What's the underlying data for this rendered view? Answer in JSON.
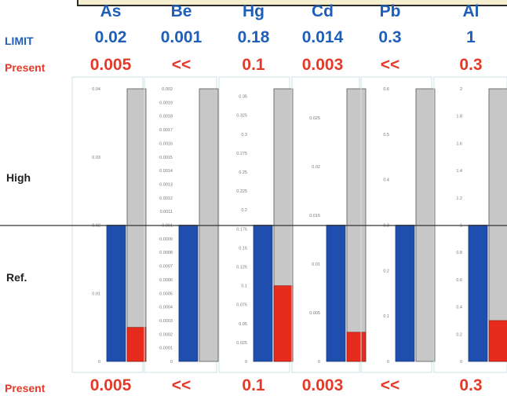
{
  "row_labels": {
    "limit": "LIMIT",
    "present": "Present",
    "high": "High",
    "ref": "Ref.",
    "present_bottom": "Present"
  },
  "colors": {
    "limit_text": "#1f5fb8",
    "present_text": "#e53a2a",
    "limit_fill": "#1f4fae",
    "present_fill": "#e62a1c",
    "high_fill": "#c7c7c7",
    "panel_border": "#cfe3e7"
  },
  "chart_data": {
    "type": "bar",
    "elements": [
      {
        "name": "As",
        "limit_label": "0.02",
        "present_label": "0.005",
        "limit": 0.02,
        "present": 0.005,
        "scale_max": 0.04,
        "ticks": [
          "0",
          "0.01",
          "0.02",
          "0.03",
          "0.04"
        ],
        "tick_values": [
          0,
          0.01,
          0.02,
          0.03,
          0.04
        ]
      },
      {
        "name": "Be",
        "limit_label": "0.001",
        "present_label": "<<",
        "limit": 0.001,
        "present": 0,
        "scale_max": 0.002,
        "ticks": [
          "0",
          "0.0001",
          "0.0002",
          "0.0003",
          "0.0004",
          "0.0005",
          "0.0006",
          "0.0007",
          "0.0008",
          "0.0009",
          "0.001",
          "0.0011",
          "0.0012",
          "0.0013",
          "0.0014",
          "0.0015",
          "0.0016",
          "0.0017",
          "0.0018",
          "0.0019",
          "0.002"
        ],
        "tick_values": [
          0,
          0.0001,
          0.0002,
          0.0003,
          0.0004,
          0.0005,
          0.0006,
          0.0007,
          0.0008,
          0.0009,
          0.001,
          0.0011,
          0.0012,
          0.0013,
          0.0014,
          0.0015,
          0.0016,
          0.0017,
          0.0018,
          0.0019,
          0.002
        ]
      },
      {
        "name": "Hg",
        "limit_label": "0.18",
        "present_label": "0.1",
        "limit": 0.18,
        "present": 0.1,
        "scale_max": 0.36,
        "ticks": [
          "0",
          "0.025",
          "0.05",
          "0.075",
          "0.1",
          "0.125",
          "0.15",
          "0.175",
          "0.2",
          "0.225",
          "0.25",
          "0.275",
          "0.3",
          "0.325",
          "0.35"
        ],
        "tick_values": [
          0,
          0.025,
          0.05,
          0.075,
          0.1,
          0.125,
          0.15,
          0.175,
          0.2,
          0.225,
          0.25,
          0.275,
          0.3,
          0.325,
          0.35
        ]
      },
      {
        "name": "Cd",
        "limit_label": "0.014",
        "present_label": "0.003",
        "limit": 0.014,
        "present": 0.003,
        "scale_max": 0.028,
        "ticks": [
          "0",
          "0.005",
          "0.01",
          "0.015",
          "0.02",
          "0.025"
        ],
        "tick_values": [
          0,
          0.005,
          0.01,
          0.015,
          0.02,
          0.025
        ]
      },
      {
        "name": "Pb",
        "limit_label": "0.3",
        "present_label": "<<",
        "limit": 0.3,
        "present": 0,
        "scale_max": 0.6,
        "ticks": [
          "0",
          "0.1",
          "0.2",
          "0.3",
          "0.4",
          "0.5",
          "0.6"
        ],
        "tick_values": [
          0,
          0.1,
          0.2,
          0.3,
          0.4,
          0.5,
          0.6
        ]
      },
      {
        "name": "Al",
        "limit_label": "1",
        "present_label": "0.3",
        "limit": 1,
        "present": 0.3,
        "scale_max": 2,
        "ticks": [
          "0",
          "0.2",
          "0.4",
          "0.6",
          "0.8",
          "1",
          "1.2",
          "1.4",
          "1.6",
          "1.8",
          "2"
        ],
        "tick_values": [
          0,
          0.2,
          0.4,
          0.6,
          0.8,
          1,
          1.2,
          1.4,
          1.6,
          1.8,
          2
        ]
      }
    ]
  }
}
